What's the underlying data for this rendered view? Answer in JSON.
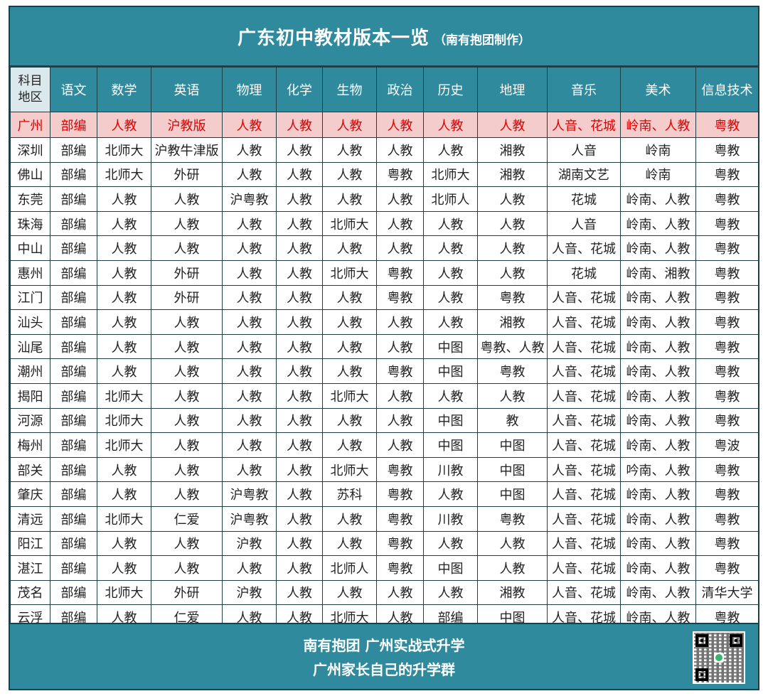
{
  "title": {
    "main": "广东初中教材版本一览",
    "sub": "（南有抱团制作）"
  },
  "header": {
    "corner_line1": "科目",
    "corner_line2": "地区",
    "subjects": [
      "语文",
      "数学",
      "英语",
      "物理",
      "化学",
      "生物",
      "政治",
      "历史",
      "地理",
      "音乐",
      "美术",
      "信息技术"
    ]
  },
  "rows": [
    [
      "广州",
      "部编",
      "人教",
      "沪教版",
      "人教",
      "人教",
      "人教",
      "人教",
      "人教",
      "人教",
      "人音、花城",
      "岭南、人教",
      "粤教"
    ],
    [
      "深圳",
      "部编",
      "北师大",
      "沪教牛津版",
      "人教",
      "人教",
      "人教",
      "人教",
      "人教",
      "湘教",
      "人音",
      "岭南",
      "粤教"
    ],
    [
      "佛山",
      "部编",
      "北师大",
      "外研",
      "人教",
      "人教",
      "人教",
      "粤教",
      "北师大",
      "湘教",
      "湖南文艺",
      "岭南",
      "粤教"
    ],
    [
      "东莞",
      "部编",
      "人教",
      "人教",
      "沪粤教",
      "人教",
      "人教",
      "人教",
      "北师人",
      "人教",
      "花城",
      "岭南、人教",
      "粤教"
    ],
    [
      "珠海",
      "部编",
      "人教",
      "人教",
      "人教",
      "人教",
      "北师大",
      "人教",
      "人教",
      "人教",
      "人音",
      "岭南、人教",
      "粤教"
    ],
    [
      "中山",
      "部编",
      "人教",
      "人教",
      "人教",
      "人教",
      "人教",
      "人教",
      "人教",
      "人教",
      "人音、花城",
      "岭南、人教",
      "粤教"
    ],
    [
      "惠州",
      "部编",
      "人教",
      "外研",
      "人教",
      "人教",
      "北师大",
      "粤教",
      "人教",
      "人教",
      "花城",
      "岭南、湘教",
      "粤教"
    ],
    [
      "江门",
      "部编",
      "人教",
      "外研",
      "人教",
      "人教",
      "人教",
      "粤教",
      "人教",
      "粤教",
      "人音、花城",
      "岭南、人教",
      "粤教"
    ],
    [
      "汕头",
      "部编",
      "人教",
      "人教",
      "人教",
      "人教",
      "人教",
      "人教",
      "人教",
      "湘教",
      "人音、花城",
      "岭南、人教",
      "粤教"
    ],
    [
      "汕尾",
      "部编",
      "人教",
      "人教",
      "人教",
      "人教",
      "人教",
      "人教",
      "中图",
      "粤教、人教",
      "人音、花城",
      "岭南、人教",
      "粤教"
    ],
    [
      "潮州",
      "部编",
      "人教",
      "人教",
      "人教",
      "人教",
      "人教",
      "粤教",
      "中图",
      "粤教",
      "人音、花城",
      "岭南、人教",
      "粤教"
    ],
    [
      "揭阳",
      "部编",
      "北师大",
      "人教",
      "人教",
      "人教",
      "北师大",
      "人教",
      "人教",
      "人教",
      "人音、花城",
      "岭南、人教",
      "粤教"
    ],
    [
      "河源",
      "部编",
      "北师大",
      "人教",
      "人教",
      "人教",
      "人教",
      "人教",
      "中图",
      "教",
      "人音、花城",
      "岭南、人教",
      "粤教"
    ],
    [
      "梅州",
      "部编",
      "北师大",
      "人教",
      "人教",
      "人教",
      "人教",
      "人教",
      "中图",
      "中图",
      "人音、花城",
      "岭南、人教",
      "粤波"
    ],
    [
      "部关",
      "部编",
      "人教",
      "人教",
      "人教",
      "人教",
      "北师大",
      "粤教",
      "川教",
      "中图",
      "人音、花城",
      "吟南、人教",
      "粤教"
    ],
    [
      "肇庆",
      "部编",
      "人教",
      "人教",
      "沪粤教",
      "人教",
      "苏科",
      "粤教",
      "人教",
      "中图",
      "人音、花城",
      "岭南、人教",
      "粤教"
    ],
    [
      "清远",
      "部编",
      "北师大",
      "仁爱",
      "沪粤教",
      "人教",
      "人教",
      "粤教",
      "川教",
      "粤教",
      "人音、花城",
      "岭南、人教",
      "粤教"
    ],
    [
      "阳江",
      "部编",
      "人教",
      "人教",
      "沪教",
      "人教",
      "人教",
      "粤教",
      "人教",
      "人教",
      "人音、花城",
      "岭南、人教",
      "粤教"
    ],
    [
      "湛江",
      "部编",
      "人教",
      "人教",
      "人教",
      "人教",
      "北师人",
      "粤教",
      "中图",
      "人教",
      "人音、花城",
      "岭南、人教",
      "粤教"
    ],
    [
      "茂名",
      "部编",
      "北师大",
      "外研",
      "沪教",
      "人教",
      "人教",
      "人教",
      "人教",
      "湘教",
      "人音、花城",
      "岭南、人教",
      "清华大学"
    ],
    [
      "云浮",
      "部编",
      "人教",
      "仁爱",
      "人教",
      "人教",
      "北师大",
      "人教",
      "部编",
      "中图",
      "人音、花城",
      "岭南、人教",
      "粤教"
    ]
  ],
  "footer": {
    "line1": "南有抱团 广州实战式升学",
    "line2": "广州家长自己的升学群"
  },
  "colors": {
    "header_bg": "#2e8a9c",
    "highlight_bg": "#f4cccc",
    "highlight_text": "#e00000",
    "border": "#1f3f48"
  }
}
